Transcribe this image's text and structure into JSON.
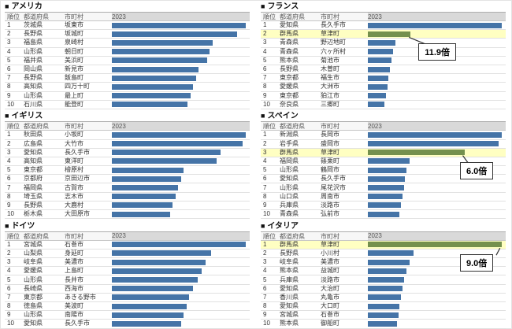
{
  "table_headers": {
    "rank": "順位",
    "prefecture": "都道府県",
    "municipality": "市町村",
    "year": "2023"
  },
  "colors": {
    "bar_blue": "#4574A7",
    "bar_green": "#74904E",
    "highlight_row": "#FFFFC2",
    "year_header_fill": "#D9D9D9",
    "callout_border": "#333333"
  },
  "chart_data": [
    {
      "type": "bar",
      "bullet": "■",
      "title": "アメリカ",
      "year": "2023",
      "rows": [
        {
          "rank": "1",
          "prefecture": "茨城県",
          "municipality": "坂東市",
          "relative_length": 0.97,
          "highlight": false
        },
        {
          "rank": "2",
          "prefecture": "長野県",
          "municipality": "坂城町",
          "relative_length": 0.91,
          "highlight": false
        },
        {
          "rank": "3",
          "prefecture": "福島県",
          "municipality": "泉崎村",
          "relative_length": 0.73,
          "highlight": false
        },
        {
          "rank": "4",
          "prefecture": "山形県",
          "municipality": "朝日町",
          "relative_length": 0.71,
          "highlight": false
        },
        {
          "rank": "5",
          "prefecture": "福井県",
          "municipality": "美浜町",
          "relative_length": 0.69,
          "highlight": false
        },
        {
          "rank": "6",
          "prefecture": "岡山県",
          "municipality": "新見市",
          "relative_length": 0.63,
          "highlight": false
        },
        {
          "rank": "7",
          "prefecture": "長野県",
          "municipality": "飯島町",
          "relative_length": 0.61,
          "highlight": false
        },
        {
          "rank": "8",
          "prefecture": "高知県",
          "municipality": "四万十町",
          "relative_length": 0.59,
          "highlight": false
        },
        {
          "rank": "9",
          "prefecture": "山形県",
          "municipality": "最上町",
          "relative_length": 0.57,
          "highlight": false
        },
        {
          "rank": "10",
          "prefecture": "石川県",
          "municipality": "能登町",
          "relative_length": 0.55,
          "highlight": false
        }
      ],
      "callout": null
    },
    {
      "type": "bar",
      "bullet": "■",
      "title": "フランス",
      "year": "2023",
      "rows": [
        {
          "rank": "1",
          "prefecture": "愛知県",
          "municipality": "長久手市",
          "relative_length": 0.97,
          "highlight": false
        },
        {
          "rank": "2",
          "prefecture": "群馬県",
          "municipality": "草津町",
          "relative_length": 0.31,
          "highlight": true
        },
        {
          "rank": "3",
          "prefecture": "青森県",
          "municipality": "野辺地町",
          "relative_length": 0.2,
          "highlight": false
        },
        {
          "rank": "4",
          "prefecture": "青森県",
          "municipality": "六ヶ所村",
          "relative_length": 0.18,
          "highlight": false
        },
        {
          "rank": "5",
          "prefecture": "熊本県",
          "municipality": "菊池市",
          "relative_length": 0.17,
          "highlight": false
        },
        {
          "rank": "6",
          "prefecture": "長野県",
          "municipality": "木曽町",
          "relative_length": 0.16,
          "highlight": false
        },
        {
          "rank": "7",
          "prefecture": "東京都",
          "municipality": "福生市",
          "relative_length": 0.15,
          "highlight": false
        },
        {
          "rank": "8",
          "prefecture": "愛媛県",
          "municipality": "大洲市",
          "relative_length": 0.14,
          "highlight": false
        },
        {
          "rank": "9",
          "prefecture": "東京都",
          "municipality": "狛江市",
          "relative_length": 0.13,
          "highlight": false
        },
        {
          "rank": "10",
          "prefecture": "奈良県",
          "municipality": "三郷町",
          "relative_length": 0.12,
          "highlight": false
        }
      ],
      "callout": {
        "label": "11.9倍",
        "target_rank": "2"
      }
    },
    {
      "type": "bar",
      "bullet": "■",
      "title": "イギリス",
      "year": "2023",
      "rows": [
        {
          "rank": "1",
          "prefecture": "秋田県",
          "municipality": "小坂町",
          "relative_length": 0.97,
          "highlight": false
        },
        {
          "rank": "2",
          "prefecture": "広島県",
          "municipality": "大竹市",
          "relative_length": 0.95,
          "highlight": false
        },
        {
          "rank": "3",
          "prefecture": "愛知県",
          "municipality": "長久手市",
          "relative_length": 0.79,
          "highlight": false
        },
        {
          "rank": "4",
          "prefecture": "高知県",
          "municipality": "東洋町",
          "relative_length": 0.76,
          "highlight": false
        },
        {
          "rank": "5",
          "prefecture": "東京都",
          "municipality": "檜原村",
          "relative_length": 0.52,
          "highlight": false
        },
        {
          "rank": "6",
          "prefecture": "京都府",
          "municipality": "京田辺市",
          "relative_length": 0.5,
          "highlight": false
        },
        {
          "rank": "7",
          "prefecture": "福岡県",
          "municipality": "古賀市",
          "relative_length": 0.48,
          "highlight": false
        },
        {
          "rank": "8",
          "prefecture": "埼玉県",
          "municipality": "志木市",
          "relative_length": 0.46,
          "highlight": false
        },
        {
          "rank": "9",
          "prefecture": "長野県",
          "municipality": "大鹿村",
          "relative_length": 0.44,
          "highlight": false
        },
        {
          "rank": "10",
          "prefecture": "栃木県",
          "municipality": "大田原市",
          "relative_length": 0.42,
          "highlight": false
        }
      ],
      "callout": null
    },
    {
      "type": "bar",
      "bullet": "■",
      "title": "スペイン",
      "year": "2023",
      "rows": [
        {
          "rank": "1",
          "prefecture": "新潟県",
          "municipality": "長岡市",
          "relative_length": 0.97,
          "highlight": false
        },
        {
          "rank": "2",
          "prefecture": "岩手県",
          "municipality": "盛岡市",
          "relative_length": 0.95,
          "highlight": false
        },
        {
          "rank": "3",
          "prefecture": "群馬県",
          "municipality": "草津町",
          "relative_length": 0.7,
          "highlight": true
        },
        {
          "rank": "4",
          "prefecture": "福岡県",
          "municipality": "篠栗町",
          "relative_length": 0.3,
          "highlight": false
        },
        {
          "rank": "5",
          "prefecture": "山形県",
          "municipality": "鶴岡市",
          "relative_length": 0.28,
          "highlight": false
        },
        {
          "rank": "6",
          "prefecture": "愛知県",
          "municipality": "長久手市",
          "relative_length": 0.27,
          "highlight": false
        },
        {
          "rank": "7",
          "prefecture": "山形県",
          "municipality": "尾花沢市",
          "relative_length": 0.26,
          "highlight": false
        },
        {
          "rank": "8",
          "prefecture": "山口県",
          "municipality": "周南市",
          "relative_length": 0.25,
          "highlight": false
        },
        {
          "rank": "9",
          "prefecture": "兵庫県",
          "municipality": "淡路市",
          "relative_length": 0.24,
          "highlight": false
        },
        {
          "rank": "10",
          "prefecture": "青森県",
          "municipality": "弘前市",
          "relative_length": 0.23,
          "highlight": false
        }
      ],
      "callout": {
        "label": "6.0倍",
        "target_rank": "3"
      }
    },
    {
      "type": "bar",
      "bullet": "■",
      "title": "ドイツ",
      "year": "2023",
      "rows": [
        {
          "rank": "1",
          "prefecture": "宮城県",
          "municipality": "石巻市",
          "relative_length": 0.97,
          "highlight": false
        },
        {
          "rank": "2",
          "prefecture": "山梨県",
          "municipality": "身延町",
          "relative_length": 0.72,
          "highlight": false
        },
        {
          "rank": "3",
          "prefecture": "岐阜県",
          "municipality": "美濃市",
          "relative_length": 0.68,
          "highlight": false
        },
        {
          "rank": "4",
          "prefecture": "愛媛県",
          "municipality": "上島町",
          "relative_length": 0.65,
          "highlight": false
        },
        {
          "rank": "5",
          "prefecture": "山形県",
          "municipality": "長井市",
          "relative_length": 0.62,
          "highlight": false
        },
        {
          "rank": "6",
          "prefecture": "長崎県",
          "municipality": "西海市",
          "relative_length": 0.59,
          "highlight": false
        },
        {
          "rank": "7",
          "prefecture": "東京都",
          "municipality": "あきる野市",
          "relative_length": 0.56,
          "highlight": false
        },
        {
          "rank": "8",
          "prefecture": "徳島県",
          "municipality": "美波町",
          "relative_length": 0.54,
          "highlight": false
        },
        {
          "rank": "9",
          "prefecture": "山形県",
          "municipality": "南陽市",
          "relative_length": 0.52,
          "highlight": false
        },
        {
          "rank": "10",
          "prefecture": "愛知県",
          "municipality": "長久手市",
          "relative_length": 0.5,
          "highlight": false
        }
      ],
      "callout": null
    },
    {
      "type": "bar",
      "bullet": "■",
      "title": "イタリア",
      "year": "2023",
      "rows": [
        {
          "rank": "1",
          "prefecture": "群馬県",
          "municipality": "草津町",
          "relative_length": 0.97,
          "highlight": true
        },
        {
          "rank": "2",
          "prefecture": "長野県",
          "municipality": "小川村",
          "relative_length": 0.33,
          "highlight": false
        },
        {
          "rank": "3",
          "prefecture": "岐阜県",
          "municipality": "美濃市",
          "relative_length": 0.3,
          "highlight": false
        },
        {
          "rank": "4",
          "prefecture": "熊本県",
          "municipality": "益城町",
          "relative_length": 0.28,
          "highlight": false
        },
        {
          "rank": "5",
          "prefecture": "兵庫県",
          "municipality": "淡路市",
          "relative_length": 0.26,
          "highlight": false
        },
        {
          "rank": "6",
          "prefecture": "愛知県",
          "municipality": "大治町",
          "relative_length": 0.25,
          "highlight": false
        },
        {
          "rank": "7",
          "prefecture": "香川県",
          "municipality": "丸亀市",
          "relative_length": 0.24,
          "highlight": false
        },
        {
          "rank": "8",
          "prefecture": "愛知県",
          "municipality": "大口町",
          "relative_length": 0.23,
          "highlight": false
        },
        {
          "rank": "9",
          "prefecture": "宮城県",
          "municipality": "石巻市",
          "relative_length": 0.22,
          "highlight": false
        },
        {
          "rank": "10",
          "prefecture": "熊本県",
          "municipality": "御船町",
          "relative_length": 0.21,
          "highlight": false
        }
      ],
      "callout": {
        "label": "9.0倍",
        "target_rank": "1"
      }
    }
  ]
}
